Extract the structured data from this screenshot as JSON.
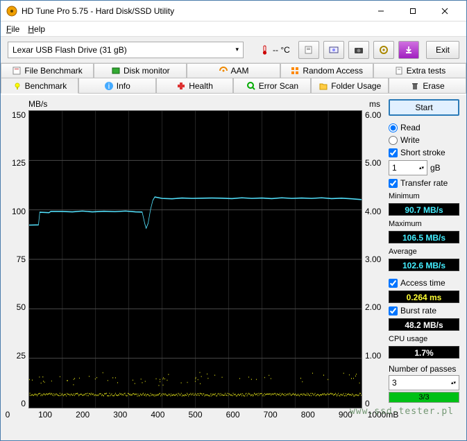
{
  "window": {
    "title": "HD Tune Pro 5.75 - Hard Disk/SSD Utility"
  },
  "menu": {
    "file": "File",
    "help": "Help"
  },
  "toolbar": {
    "drive": "Lexar   USB Flash Drive (31 gB)",
    "temp": "-- °C",
    "exit": "Exit"
  },
  "tabs_row1": [
    {
      "label": "File Benchmark"
    },
    {
      "label": "Disk monitor"
    },
    {
      "label": "AAM"
    },
    {
      "label": "Random Access"
    },
    {
      "label": "Extra tests"
    }
  ],
  "tabs_row2": [
    {
      "label": "Benchmark",
      "active": true
    },
    {
      "label": "Info"
    },
    {
      "label": "Health"
    },
    {
      "label": "Error Scan"
    },
    {
      "label": "Folder Usage"
    },
    {
      "label": "Erase"
    }
  ],
  "chart": {
    "type": "line",
    "y_left_label": "MB/s",
    "y_right_label": "ms",
    "x_unit": "mB",
    "y_left_ticks": [
      "150",
      "125",
      "100",
      "75",
      "50",
      "25",
      "0"
    ],
    "y_right_ticks": [
      "6.00",
      "5.00",
      "4.00",
      "3.00",
      "2.00",
      "1.00",
      "0"
    ],
    "x_ticks": [
      "0",
      "100",
      "200",
      "300",
      "400",
      "500",
      "600",
      "700",
      "800",
      "900",
      "1000"
    ],
    "ylim_left": [
      0,
      150
    ],
    "ylim_right": [
      0,
      6
    ],
    "xlim": [
      0,
      1000
    ],
    "grid_color": "#4a4a4a",
    "bg": "#000000",
    "transfer_color": "#52dffa",
    "access_color": "#f5f51a",
    "transfer_points": [
      [
        0,
        92.3
      ],
      [
        28,
        92.4
      ],
      [
        32,
        98.8
      ],
      [
        60,
        98.6
      ],
      [
        65,
        99.2
      ],
      [
        100,
        99.2
      ],
      [
        130,
        99.0
      ],
      [
        160,
        99.4
      ],
      [
        190,
        99.0
      ],
      [
        225,
        99.3
      ],
      [
        258,
        99.1
      ],
      [
        290,
        99.4
      ],
      [
        320,
        99.0
      ],
      [
        340,
        98.9
      ],
      [
        348,
        93.0
      ],
      [
        352,
        90.7
      ],
      [
        358,
        93.2
      ],
      [
        365,
        100.0
      ],
      [
        372,
        104.8
      ],
      [
        378,
        106.5
      ],
      [
        400,
        105.8
      ],
      [
        430,
        105.6
      ],
      [
        460,
        106.0
      ],
      [
        490,
        105.8
      ],
      [
        520,
        105.9
      ],
      [
        550,
        106.0
      ],
      [
        580,
        105.9
      ],
      [
        610,
        105.7
      ],
      [
        640,
        106.1
      ],
      [
        670,
        105.8
      ],
      [
        700,
        106.0
      ],
      [
        730,
        105.7
      ],
      [
        760,
        106.1
      ],
      [
        790,
        105.8
      ],
      [
        820,
        106.0
      ],
      [
        850,
        105.8
      ],
      [
        880,
        106.1
      ],
      [
        910,
        105.7
      ],
      [
        940,
        105.9
      ],
      [
        970,
        105.6
      ],
      [
        1000,
        105.2
      ]
    ],
    "access_band_ms": 0.264,
    "access_scatter_top_ms": [
      0.6,
      0.55,
      0.68,
      0.52,
      0.63,
      0.58,
      0.49,
      0.66,
      0.54,
      0.62,
      0.57,
      0.6,
      0.53,
      0.59,
      0.65,
      0.56,
      0.61,
      0.5,
      0.58,
      0.64
    ]
  },
  "controls": {
    "start": "Start",
    "read": "Read",
    "write": "Write",
    "short_stroke": "Short stroke",
    "short_stroke_val": "1",
    "short_stroke_unit": "gB",
    "transfer_rate": "Transfer rate",
    "minimum": "Minimum",
    "minimum_val": "90.7 MB/s",
    "maximum": "Maximum",
    "maximum_val": "106.5 MB/s",
    "average": "Average",
    "average_val": "102.6 MB/s",
    "access_time": "Access time",
    "access_val": "0.264 ms",
    "burst_rate": "Burst rate",
    "burst_val": "48.2 MB/s",
    "cpu": "CPU usage",
    "cpu_val": "1.7%",
    "passes": "Number of passes",
    "passes_val": "3",
    "progress_txt": "3/3",
    "progress_fill_pct": 100
  },
  "watermark": "www.ssd-tester.pl"
}
